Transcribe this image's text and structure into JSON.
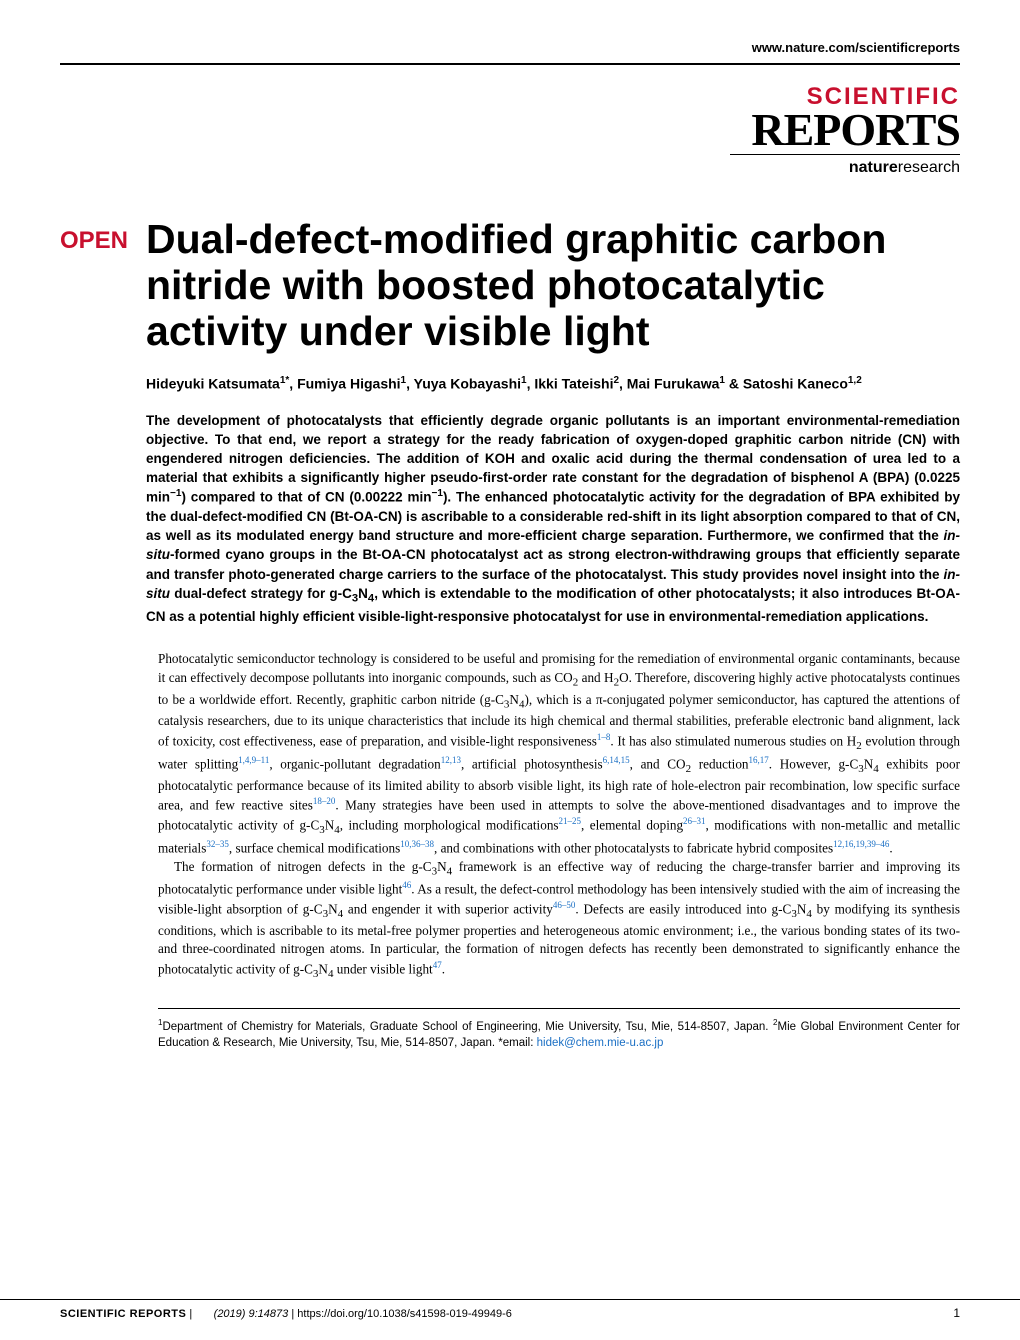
{
  "header": {
    "url": "www.nature.com/scientificreports",
    "logo_scientific": "SCIENTIFIC",
    "logo_reports": "REPORTS",
    "logo_publisher_bold": "nature",
    "logo_publisher_plain": "research"
  },
  "article": {
    "open_badge": "OPEN",
    "title": "Dual-defect-modified graphitic carbon nitride with boosted photocatalytic activity under visible light",
    "authors_html": "Hideyuki Katsumata<sup>1*</sup>, Fumiya Higashi<sup>1</sup>, Yuya Kobayashi<sup>1</sup>, Ikki Tateishi<sup>2</sup>, Mai Furukawa<sup>1</sup> & Satoshi Kaneco<sup>1,2</sup>",
    "abstract_html": "The development of photocatalysts that efficiently degrade organic pollutants is an important environmental-remediation objective. To that end, we report a strategy for the ready fabrication of oxygen-doped graphitic carbon nitride (CN) with engendered nitrogen deficiencies. The addition of KOH and oxalic acid during the thermal condensation of urea led to a material that exhibits a significantly higher pseudo-first-order rate constant for the degradation of bisphenol A (BPA) (0.0225 min<sup>−1</sup>) compared to that of CN (0.00222 min<sup>−1</sup>). The enhanced photocatalytic activity for the degradation of BPA exhibited by the dual-defect-modified CN (Bt-OA-CN) is ascribable to a considerable red-shift in its light absorption compared to that of CN, as well as its modulated energy band structure and more-efficient charge separation. Furthermore, we confirmed that the <i>in-situ</i>-formed cyano groups in the Bt-OA-CN photocatalyst act as strong electron-withdrawing groups that efficiently separate and transfer photo-generated charge carriers to the surface of the photocatalyst. This study provides novel insight into the <i>in-situ</i> dual-defect strategy for g-C<sub>3</sub>N<sub>4</sub>, which is extendable to the modification of other photocatalysts; it also introduces Bt-OA-CN as a potential highly efficient visible-light-responsive photocatalyst for use in environmental-remediation applications."
  },
  "body": {
    "para1_html": "Photocatalytic semiconductor technology is considered to be useful and promising for the remediation of environmental organic contaminants, because it can effectively decompose pollutants into inorganic compounds, such as CO<sub>2</sub> and H<sub>2</sub>O. Therefore, discovering highly active photocatalysts continues to be a worldwide effort. Recently, graphitic carbon nitride (g-C<sub>3</sub>N<sub>4</sub>), which is a π-conjugated polymer semiconductor, has captured the attentions of catalysis researchers, due to its unique characteristics that include its high chemical and thermal stabilities, preferable electronic band alignment, lack of toxicity, cost effectiveness, ease of preparation, and visible-light responsiveness<sup class=\"ref\">1–8</sup>. It has also stimulated numerous studies on H<sub>2</sub> evolution through water splitting<sup class=\"ref\">1,4,9–11</sup>, organic-pollutant degradation<sup class=\"ref\">12,13</sup>, artificial photosynthesis<sup class=\"ref\">6,14,15</sup>, and CO<sub>2</sub> reduction<sup class=\"ref\">16,17</sup>. However, g-C<sub>3</sub>N<sub>4</sub> exhibits poor photocatalytic performance because of its limited ability to absorb visible light, its high rate of hole-electron pair recombination, low specific surface area, and few reactive sites<sup class=\"ref\">18–20</sup>. Many strategies have been used in attempts to solve the above-mentioned disadvantages and to improve the photocatalytic activity of g-C<sub>3</sub>N<sub>4</sub>, including morphological modifications<sup class=\"ref\">21–25</sup>, elemental doping<sup class=\"ref\">26–31</sup>, modifications with non-metallic and metallic materials<sup class=\"ref\">32–35</sup>, surface chemical modifications<sup class=\"ref\">10,36–38</sup>, and combinations with other photocatalysts to fabricate hybrid composites<sup class=\"ref\">12,16,19,39–46</sup>.",
    "para2_html": "The formation of nitrogen defects in the g-C<sub>3</sub>N<sub>4</sub> framework is an effective way of reducing the charge-transfer barrier and improving its photocatalytic performance under visible light<sup class=\"ref\">46</sup>. As a result, the defect-control methodology has been intensively studied with the aim of increasing the visible-light absorption of g-C<sub>3</sub>N<sub>4</sub> and engender it with superior activity<sup class=\"ref\">46–50</sup>. Defects are easily introduced into g-C<sub>3</sub>N<sub>4</sub> by modifying its synthesis conditions, which is ascribable to its metal-free polymer properties and heterogeneous atomic environment; i.e., the various bonding states of its two- and three-coordinated nitrogen atoms. In particular, the formation of nitrogen defects has recently been demonstrated to significantly enhance the photocatalytic activity of g-C<sub>3</sub>N<sub>4</sub> under visible light<sup class=\"ref\">47</sup>."
  },
  "affiliations_html": "<sup>1</sup>Department of Chemistry for Materials, Graduate School of Engineering, Mie University, Tsu, Mie, 514-8507, Japan. <sup>2</sup>Mie Global Environment Center for Education & Research, Mie University, Tsu, Mie, 514-8507, Japan. *email: <span class=\"email\">hidek@chem.mie-u.ac.jp</span>",
  "footer": {
    "journal": "SCIENTIFIC REPORTS",
    "citation": "(2019) 9:14873",
    "doi": "https://doi.org/10.1038/s41598-019-49949-6",
    "page": "1"
  },
  "colors": {
    "accent_red": "#c8102e",
    "link_blue": "#1a6fc4",
    "text": "#000000",
    "background": "#ffffff"
  }
}
